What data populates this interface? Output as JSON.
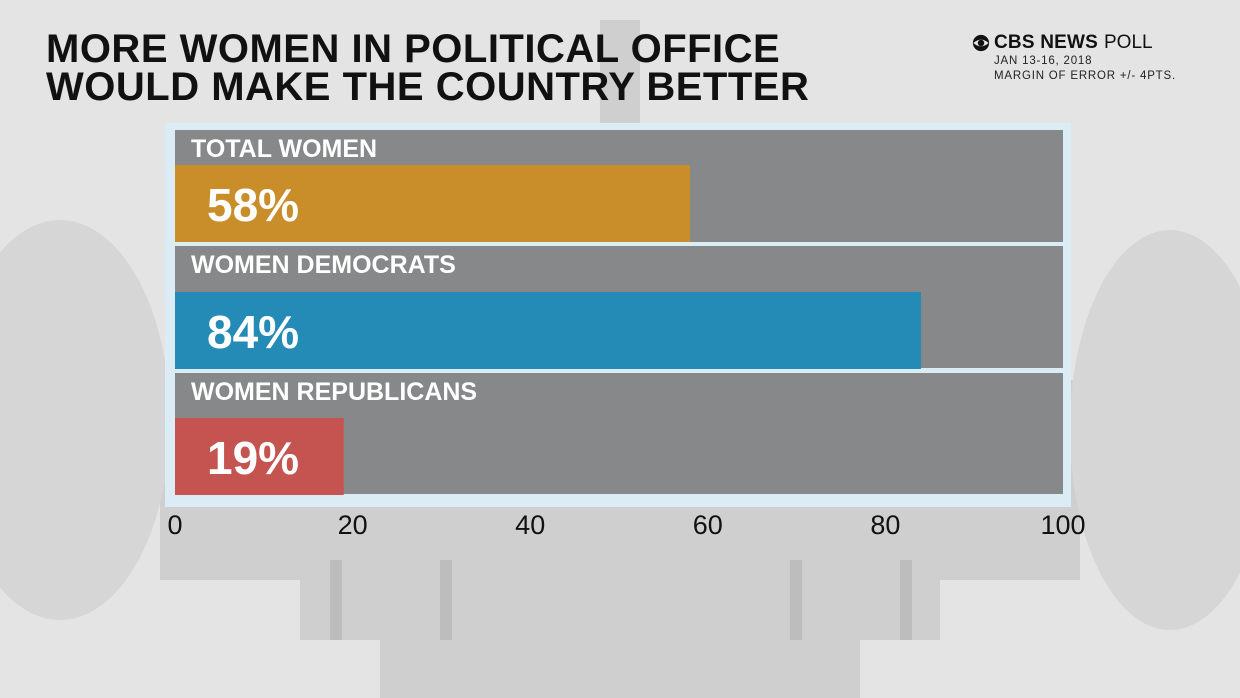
{
  "header": {
    "title_line1": "MORE WOMEN IN POLITICAL OFFICE",
    "title_line2": "WOULD MAKE THE COUNTRY BETTER"
  },
  "brand": {
    "name": "CBS NEWS",
    "suffix": "POLL",
    "date": "JAN 13-16, 2018",
    "margin_of_error": "MARGIN OF ERROR +/- 4PTS."
  },
  "icons": {
    "brand_logo": "cbs-eye-icon"
  },
  "colors": {
    "total_women": "#c98e2a",
    "women_democrats": "#238bb5",
    "women_republicans": "#c5534f",
    "track": "#808080",
    "frame": "#dcecf4"
  },
  "chart_data": {
    "type": "bar",
    "orientation": "horizontal",
    "title": "MORE WOMEN IN POLITICAL OFFICE WOULD MAKE THE COUNTRY BETTER",
    "categories": [
      "TOTAL WOMEN",
      "WOMEN DEMOCRATS",
      "WOMEN REPUBLICANS"
    ],
    "values": [
      58,
      84,
      19
    ],
    "value_labels": [
      "58%",
      "84%",
      "19%"
    ],
    "xlim": [
      0,
      100
    ],
    "ticks": [
      0,
      20,
      40,
      60,
      80,
      100
    ],
    "tick_labels": [
      "0",
      "20",
      "40",
      "60",
      "80",
      "100"
    ],
    "grid": false,
    "legend": "none"
  }
}
